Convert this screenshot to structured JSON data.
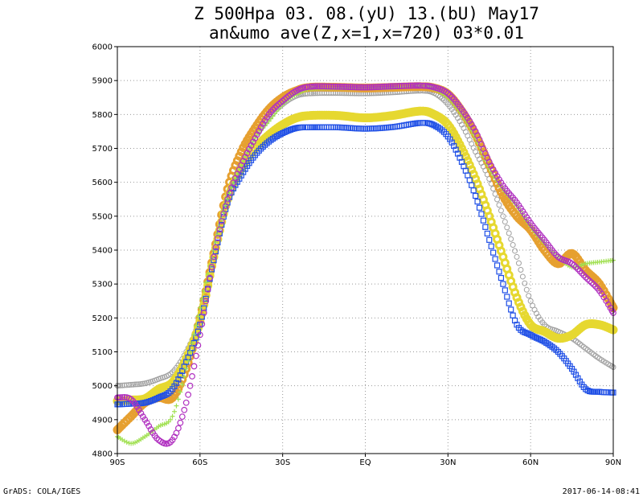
{
  "chart_data": {
    "type": "line",
    "title": "Z 500Hpa 03. 08.(yU) 13.(bU) May17",
    "subtitle": "an&umo ave(Z,x=1,x=720) 03*0.01",
    "xlabel": "",
    "ylabel": "",
    "xlim": [
      -90,
      90
    ],
    "ylim": [
      4800,
      6000
    ],
    "grid": true,
    "x_ticks": [
      {
        "value": -90,
        "label": "90S"
      },
      {
        "value": -60,
        "label": "60S"
      },
      {
        "value": -30,
        "label": "30S"
      },
      {
        "value": 0,
        "label": "EQ"
      },
      {
        "value": 30,
        "label": "30N"
      },
      {
        "value": 60,
        "label": "60N"
      },
      {
        "value": 90,
        "label": "90N"
      }
    ],
    "y_ticks": [
      4800,
      4900,
      5000,
      5100,
      5200,
      5300,
      5400,
      5500,
      5600,
      5700,
      5800,
      5900,
      6000
    ],
    "series": [
      {
        "color": "#a0a0a0",
        "marker": "circle-small",
        "points": [
          [
            -90,
            5000
          ],
          [
            -85,
            5003
          ],
          [
            -80,
            5007
          ],
          [
            -75,
            5020
          ],
          [
            -70,
            5040
          ],
          [
            -65,
            5100
          ],
          [
            -60,
            5200
          ],
          [
            -55,
            5390
          ],
          [
            -50,
            5560
          ],
          [
            -45,
            5660
          ],
          [
            -40,
            5730
          ],
          [
            -35,
            5790
          ],
          [
            -30,
            5830
          ],
          [
            -25,
            5855
          ],
          [
            -20,
            5862
          ],
          [
            -10,
            5863
          ],
          [
            0,
            5862
          ],
          [
            10,
            5865
          ],
          [
            20,
            5870
          ],
          [
            25,
            5863
          ],
          [
            30,
            5830
          ],
          [
            35,
            5770
          ],
          [
            40,
            5690
          ],
          [
            45,
            5610
          ],
          [
            50,
            5500
          ],
          [
            55,
            5380
          ],
          [
            60,
            5250
          ],
          [
            65,
            5180
          ],
          [
            70,
            5160
          ],
          [
            75,
            5140
          ],
          [
            80,
            5110
          ],
          [
            85,
            5080
          ],
          [
            90,
            5055
          ]
        ]
      },
      {
        "color": "#e6a030",
        "marker": "circle-large",
        "points": [
          [
            -90,
            4870
          ],
          [
            -85,
            4910
          ],
          [
            -80,
            4950
          ],
          [
            -75,
            4965
          ],
          [
            -70,
            4965
          ],
          [
            -65,
            5050
          ],
          [
            -60,
            5200
          ],
          [
            -55,
            5390
          ],
          [
            -50,
            5580
          ],
          [
            -45,
            5690
          ],
          [
            -40,
            5760
          ],
          [
            -35,
            5815
          ],
          [
            -30,
            5850
          ],
          [
            -25,
            5870
          ],
          [
            -20,
            5880
          ],
          [
            -10,
            5880
          ],
          [
            0,
            5878
          ],
          [
            10,
            5880
          ],
          [
            20,
            5882
          ],
          [
            25,
            5878
          ],
          [
            30,
            5860
          ],
          [
            35,
            5810
          ],
          [
            40,
            5740
          ],
          [
            45,
            5650
          ],
          [
            50,
            5560
          ],
          [
            55,
            5500
          ],
          [
            60,
            5460
          ],
          [
            65,
            5400
          ],
          [
            70,
            5360
          ],
          [
            75,
            5390
          ],
          [
            80,
            5340
          ],
          [
            85,
            5300
          ],
          [
            90,
            5230
          ]
        ]
      },
      {
        "color": "#e6d830",
        "marker": "circle-large",
        "points": [
          [
            -90,
            4955
          ],
          [
            -85,
            4958
          ],
          [
            -80,
            4962
          ],
          [
            -75,
            4990
          ],
          [
            -70,
            5010
          ],
          [
            -65,
            5080
          ],
          [
            -60,
            5190
          ],
          [
            -55,
            5380
          ],
          [
            -50,
            5550
          ],
          [
            -45,
            5640
          ],
          [
            -40,
            5700
          ],
          [
            -35,
            5740
          ],
          [
            -30,
            5770
          ],
          [
            -25,
            5790
          ],
          [
            -20,
            5797
          ],
          [
            -10,
            5797
          ],
          [
            0,
            5790
          ],
          [
            10,
            5797
          ],
          [
            20,
            5810
          ],
          [
            25,
            5800
          ],
          [
            30,
            5770
          ],
          [
            35,
            5700
          ],
          [
            40,
            5610
          ],
          [
            45,
            5500
          ],
          [
            50,
            5380
          ],
          [
            55,
            5260
          ],
          [
            60,
            5180
          ],
          [
            65,
            5160
          ],
          [
            70,
            5140
          ],
          [
            75,
            5150
          ],
          [
            80,
            5180
          ],
          [
            85,
            5180
          ],
          [
            90,
            5165
          ]
        ]
      },
      {
        "color": "#2050e6",
        "marker": "square",
        "points": [
          [
            -90,
            4945
          ],
          [
            -85,
            4947
          ],
          [
            -80,
            4950
          ],
          [
            -75,
            4965
          ],
          [
            -70,
            4990
          ],
          [
            -65,
            5070
          ],
          [
            -60,
            5180
          ],
          [
            -55,
            5370
          ],
          [
            -50,
            5540
          ],
          [
            -45,
            5620
          ],
          [
            -40,
            5680
          ],
          [
            -35,
            5720
          ],
          [
            -30,
            5745
          ],
          [
            -25,
            5760
          ],
          [
            -20,
            5762
          ],
          [
            -10,
            5762
          ],
          [
            0,
            5758
          ],
          [
            10,
            5763
          ],
          [
            20,
            5775
          ],
          [
            25,
            5768
          ],
          [
            30,
            5735
          ],
          [
            35,
            5660
          ],
          [
            40,
            5560
          ],
          [
            45,
            5430
          ],
          [
            50,
            5300
          ],
          [
            55,
            5180
          ],
          [
            60,
            5150
          ],
          [
            65,
            5130
          ],
          [
            70,
            5100
          ],
          [
            75,
            5050
          ],
          [
            80,
            4990
          ],
          [
            85,
            4982
          ],
          [
            90,
            4980
          ]
        ]
      },
      {
        "color": "#a0e050",
        "marker": "plus",
        "points": [
          [
            -90,
            4850
          ],
          [
            -85,
            4830
          ],
          [
            -80,
            4850
          ],
          [
            -75,
            4880
          ],
          [
            -70,
            4910
          ],
          [
            -65,
            5050
          ],
          [
            -60,
            5230
          ],
          [
            -55,
            5400
          ],
          [
            -50,
            5550
          ],
          [
            -45,
            5650
          ],
          [
            -40,
            5730
          ],
          [
            -35,
            5780
          ],
          [
            -30,
            5830
          ],
          [
            -25,
            5860
          ],
          [
            -20,
            5875
          ],
          [
            -10,
            5878
          ],
          [
            0,
            5878
          ],
          [
            10,
            5880
          ],
          [
            20,
            5885
          ],
          [
            25,
            5875
          ],
          [
            30,
            5850
          ],
          [
            35,
            5800
          ],
          [
            40,
            5730
          ],
          [
            45,
            5640
          ],
          [
            50,
            5580
          ],
          [
            55,
            5530
          ],
          [
            60,
            5470
          ],
          [
            65,
            5420
          ],
          [
            70,
            5380
          ],
          [
            75,
            5350
          ],
          [
            80,
            5360
          ],
          [
            85,
            5365
          ],
          [
            90,
            5370
          ]
        ]
      },
      {
        "color": "#b030c0",
        "marker": "circle-hollow",
        "points": [
          [
            -90,
            4965
          ],
          [
            -85,
            4960
          ],
          [
            -80,
            4900
          ],
          [
            -75,
            4840
          ],
          [
            -70,
            4840
          ],
          [
            -65,
            4950
          ],
          [
            -60,
            5150
          ],
          [
            -55,
            5380
          ],
          [
            -50,
            5550
          ],
          [
            -45,
            5650
          ],
          [
            -40,
            5730
          ],
          [
            -35,
            5800
          ],
          [
            -30,
            5840
          ],
          [
            -25,
            5870
          ],
          [
            -20,
            5882
          ],
          [
            -10,
            5882
          ],
          [
            0,
            5880
          ],
          [
            10,
            5883
          ],
          [
            20,
            5885
          ],
          [
            25,
            5880
          ],
          [
            30,
            5862
          ],
          [
            35,
            5815
          ],
          [
            40,
            5750
          ],
          [
            45,
            5660
          ],
          [
            50,
            5590
          ],
          [
            55,
            5540
          ],
          [
            60,
            5480
          ],
          [
            65,
            5430
          ],
          [
            70,
            5380
          ],
          [
            75,
            5360
          ],
          [
            80,
            5320
          ],
          [
            85,
            5280
          ],
          [
            90,
            5215
          ]
        ]
      }
    ]
  },
  "footer": {
    "left": "GrADS: COLA/IGES",
    "right": "2017-06-14-08:41"
  }
}
